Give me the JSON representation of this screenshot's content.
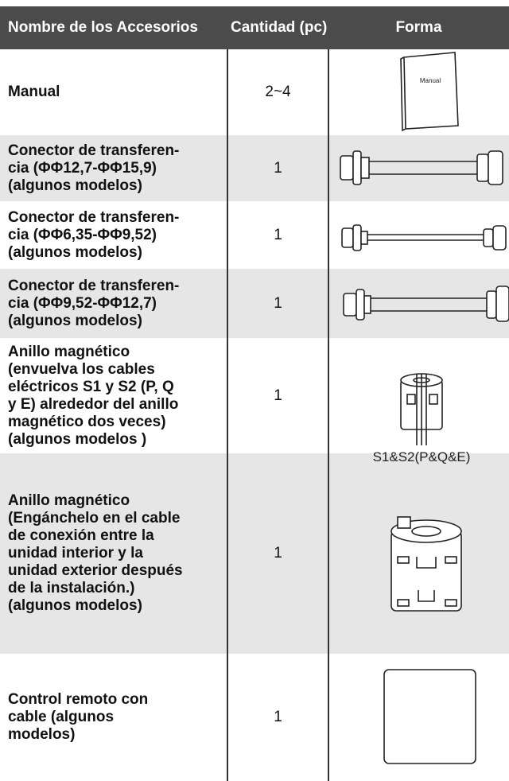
{
  "table": {
    "header": [
      "Nombre de los Accesorios",
      "Cantidad (pc)",
      "Forma"
    ],
    "rows": [
      {
        "name": [
          "Manual"
        ],
        "qty": "2~4"
      },
      {
        "name": [
          "Conector de transferen-",
          "cia (ΦΦ12,7-ΦΦ15,9)",
          "(algunos modelos)"
        ],
        "qty": "1"
      },
      {
        "name": [
          "Conector de transferen-",
          "cia (ΦΦ6,35-ΦΦ9,52)",
          "(algunos modelos)"
        ],
        "qty": "1"
      },
      {
        "name": [
          "Conector de transferen-",
          "cia (ΦΦ9,52-ΦΦ12,7)",
          "(algunos modelos)"
        ],
        "qty": "1"
      },
      {
        "name": [
          "Anillo magnético",
          "(envuelva los cables",
          "eléctricos S1 y S2 (P, Q",
          "y E) alrededor del anillo",
          "magnético dos veces)",
          "(algunos modelos )"
        ],
        "qty": "1"
      },
      {
        "name": [
          "Anillo magnético",
          "(Engánchelo en el cable",
          "de conexión entre la",
          "unidad interior y la",
          "unidad exterior después",
          "de la instalación.)",
          "(algunos modelos)"
        ],
        "qty": "1"
      },
      {
        "name": [
          "Control remoto con",
          "cable (algunos",
          "modelos)"
        ],
        "qty": "1"
      }
    ]
  },
  "images": {
    "manual_cover": "Manual",
    "ring_caption": "S1&S2(P&Q&E)"
  }
}
